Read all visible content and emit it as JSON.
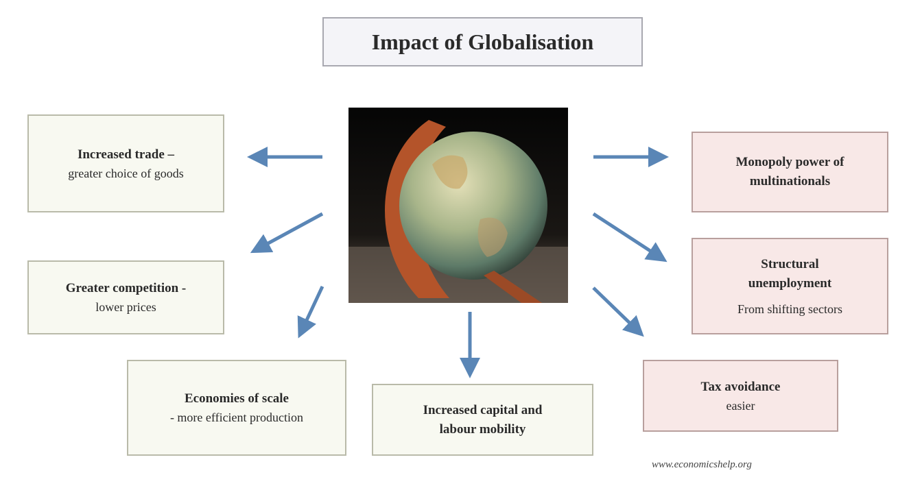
{
  "title": "Impact of Globalisation",
  "nodes": [
    {
      "heading": [
        "Increased trade –"
      ],
      "detail": [
        "greater choice of goods"
      ],
      "tone": "green"
    },
    {
      "heading": [
        "Greater competition -"
      ],
      "detail": [
        "lower prices"
      ],
      "tone": "green"
    },
    {
      "heading": [
        "Economies of scale"
      ],
      "detail": [
        "- more efficient production"
      ],
      "tone": "green"
    },
    {
      "heading": [
        "Increased capital and",
        "labour mobility"
      ],
      "tone": "green"
    },
    {
      "heading": [
        "Monopoly power of",
        "multinationals"
      ],
      "tone": "pink"
    },
    {
      "heading": [
        "Structural",
        "unemployment"
      ],
      "detail": [
        "From shifting sectors"
      ],
      "tone": "pink"
    },
    {
      "heading": [
        "Tax avoidance"
      ],
      "detail": [
        "easier"
      ],
      "tone": "pink"
    }
  ],
  "credit": "www.economicshelp.org"
}
